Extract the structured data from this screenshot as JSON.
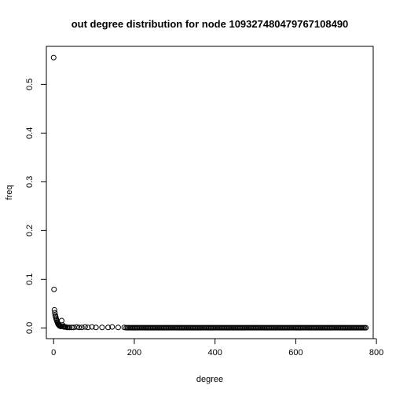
{
  "chart_data": {
    "type": "scatter",
    "title": "out degree distribution for node 109327480479767108490",
    "xlabel": "degree",
    "ylabel": "freq",
    "xlim": [
      -18,
      792
    ],
    "ylim": [
      -0.022,
      0.578
    ],
    "x_ticks": [
      0,
      200,
      400,
      600,
      800
    ],
    "y_ticks": [
      0.0,
      0.1,
      0.2,
      0.3,
      0.4,
      0.5
    ],
    "x_tick_labels": [
      "0",
      "200",
      "400",
      "600",
      "800"
    ],
    "y_tick_labels": [
      "0.0",
      "0.1",
      "0.2",
      "0.3",
      "0.4",
      "0.5"
    ],
    "grid": false,
    "legend": "none",
    "marker": "open-circle",
    "color": "#000000",
    "series": [
      {
        "points": [
          [
            0,
            0.555
          ],
          [
            1,
            0.079
          ],
          [
            2,
            0.037
          ],
          [
            3,
            0.031
          ],
          [
            4,
            0.026
          ],
          [
            5,
            0.023
          ],
          [
            6,
            0.02
          ],
          [
            7,
            0.017
          ],
          [
            8,
            0.015
          ],
          [
            9,
            0.012
          ],
          [
            10,
            0.01
          ],
          [
            11,
            0.008
          ],
          [
            12,
            0.007
          ],
          [
            13,
            0.006
          ],
          [
            14,
            0.005
          ],
          [
            15,
            0.004
          ],
          [
            16,
            0.004
          ],
          [
            18,
            0.003
          ],
          [
            20,
            0.015
          ],
          [
            22,
            0.006
          ],
          [
            24,
            0.003
          ],
          [
            26,
            0.002
          ],
          [
            28,
            0.002
          ],
          [
            30,
            0.002
          ],
          [
            33,
            0.001
          ],
          [
            36,
            0.001
          ],
          [
            40,
            0.001
          ],
          [
            45,
            0.001
          ],
          [
            50,
            0.001
          ],
          [
            57,
            0.002
          ],
          [
            63,
            0.001
          ],
          [
            70,
            0.001
          ],
          [
            78,
            0.002
          ],
          [
            85,
            0.001
          ],
          [
            95,
            0.002
          ],
          [
            105,
            0.001
          ],
          [
            120,
            0.001
          ],
          [
            135,
            0.001
          ],
          [
            145,
            0.002
          ],
          [
            160,
            0.001
          ],
          [
            175,
            0.001
          ]
        ],
        "dense_tail": {
          "x_start": 180,
          "x_end": 775,
          "step": 3,
          "y": 0.0003
        }
      }
    ]
  }
}
